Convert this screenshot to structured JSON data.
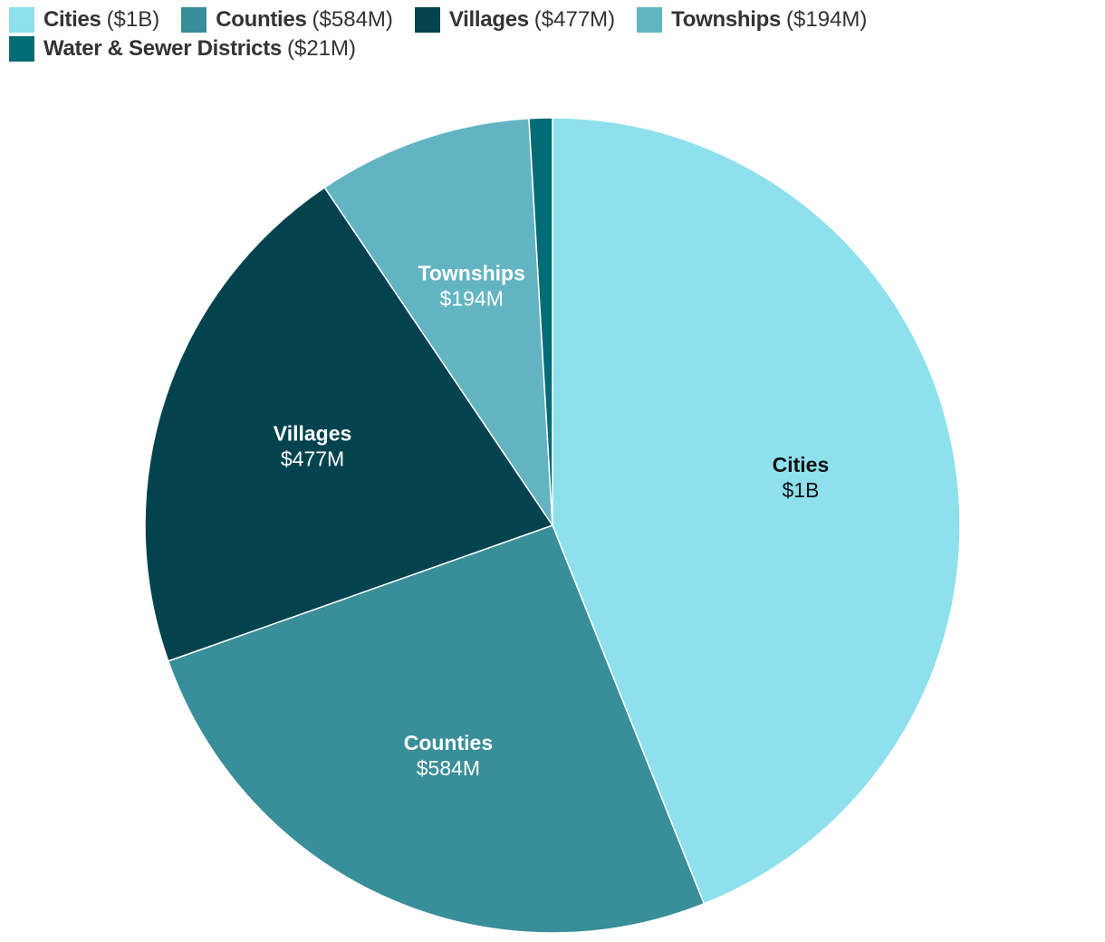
{
  "chart_data": {
    "type": "pie",
    "slices": [
      {
        "label": "Cities",
        "value_label": "$1B",
        "value": 1000,
        "color": "#8de0ec",
        "text_color": "#111111"
      },
      {
        "label": "Counties",
        "value_label": "$584M",
        "value": 584,
        "color": "#388e99",
        "text_color": "#ffffff"
      },
      {
        "label": "Villages",
        "value_label": "$477M",
        "value": 477,
        "color": "#02434f",
        "text_color": "#ffffff"
      },
      {
        "label": "Townships",
        "value_label": "$194M",
        "value": 194,
        "color": "#62b4c3",
        "text_color": "#ffffff"
      },
      {
        "label": "Water & Sewer Districts",
        "value_label": "$21M",
        "value": 21,
        "color": "#016b76",
        "text_color": "#ffffff"
      }
    ],
    "legend": {
      "placement": "top-left",
      "entries": [
        {
          "name": "Cities",
          "value": "($1B)"
        },
        {
          "name": "Counties",
          "value": "($584M)"
        },
        {
          "name": "Villages",
          "value": "($477M)"
        },
        {
          "name": "Townships",
          "value": "($194M)"
        },
        {
          "name": "Water & Sewer Districts",
          "value": "($21M)"
        }
      ]
    },
    "slice_border_color": "#ffffff",
    "unit": "millions of dollars"
  }
}
